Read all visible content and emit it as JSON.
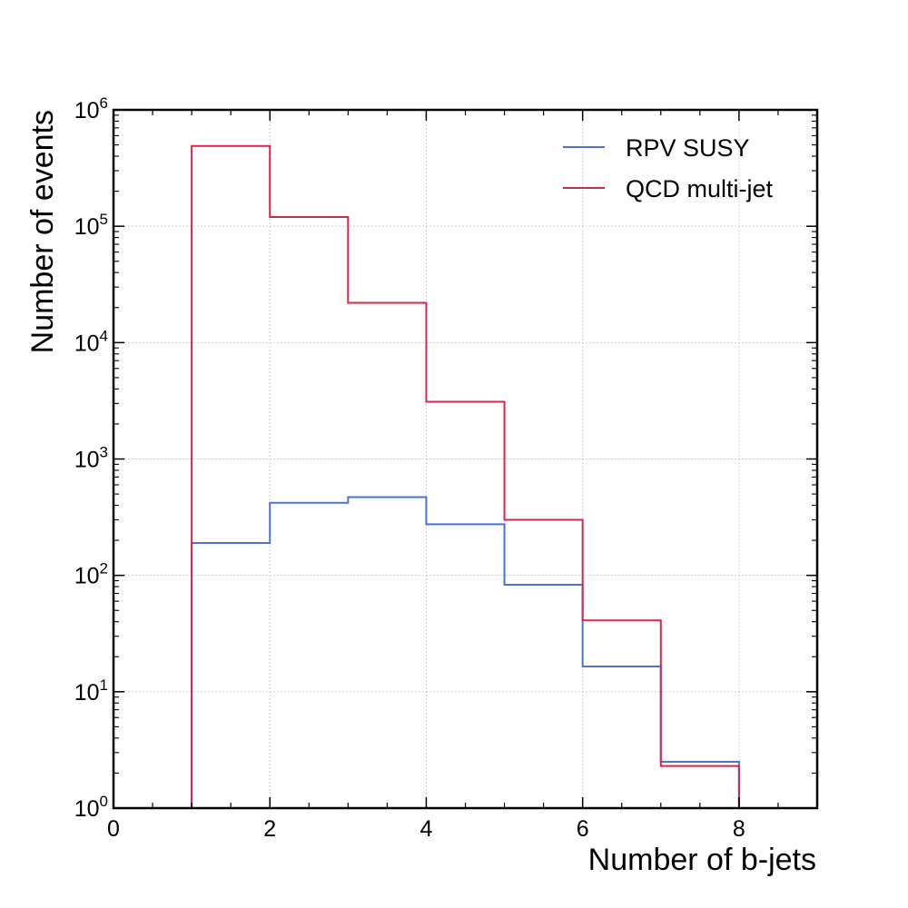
{
  "chart_data": {
    "type": "histogram",
    "title": "",
    "xlabel": "Number of b-jets",
    "ylabel": "Number of events",
    "xlim": [
      0,
      9
    ],
    "ylim": [
      1,
      1000000
    ],
    "yscale": "log",
    "grid": true,
    "legend_position": "top-right",
    "x_ticks": [
      0,
      2,
      4,
      6,
      8
    ],
    "y_ticks": [
      {
        "base": "10",
        "exp": "0"
      },
      {
        "base": "10",
        "exp": "1"
      },
      {
        "base": "10",
        "exp": "2"
      },
      {
        "base": "10",
        "exp": "3"
      },
      {
        "base": "10",
        "exp": "4"
      },
      {
        "base": "10",
        "exp": "5"
      },
      {
        "base": "10",
        "exp": "6"
      }
    ],
    "bin_edges": [
      1,
      2,
      3,
      4,
      5,
      6,
      7,
      8
    ],
    "series": [
      {
        "name": "RPV SUSY",
        "color": "#4c72d4",
        "values": [
          190,
          420,
          470,
          275,
          83,
          16.5,
          2.5
        ]
      },
      {
        "name": "QCD multi-jet",
        "color": "#d8264b",
        "values": [
          490000,
          120000,
          22000,
          3100,
          300,
          41,
          2.3
        ]
      }
    ]
  }
}
